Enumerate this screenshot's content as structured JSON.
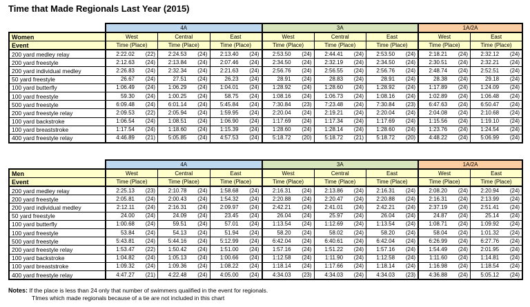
{
  "title": "Time that Made Regionals Last Year (2015)",
  "notes": {
    "label": "Notes:",
    "line1": "If the place is less than 24 only that number of swimmers qualified in the event for regionals.",
    "line2": "TImes which made regionals because of a tie are not included in this chart"
  },
  "colors": {
    "band_4a": "#BDD7EE",
    "band_3a": "#D8E4BC",
    "band_1a2a": "#FBCDA2",
    "header_yellow": "#FFFFCC",
    "border": "#000000"
  },
  "chart_data": [
    {
      "type": "table",
      "group_label": "Women",
      "event_header": "Event",
      "time_place_header": "Time (Place)",
      "sections": [
        {
          "label": "4A",
          "cols": 3,
          "color_key": "band_4a"
        },
        {
          "label": "3A",
          "cols": 3,
          "color_key": "band_3a"
        },
        {
          "label": "1A/2A",
          "cols": 2,
          "color_key": "band_1a2a"
        }
      ],
      "region_headers": [
        "West",
        "Central",
        "East",
        "West",
        "Central",
        "East",
        "West",
        "East"
      ],
      "rows": [
        {
          "event": "200 yard medley relay",
          "cells": [
            [
              "2:22.02",
              "(22)"
            ],
            [
              "2:24.53",
              "(24)"
            ],
            [
              "2:13.40",
              "(24)"
            ],
            [
              "2:53.50",
              "(24)"
            ],
            [
              "2:44.41",
              "(24)"
            ],
            [
              "2:53.50",
              "(24)"
            ],
            [
              "2:18.21",
              "(24)"
            ],
            [
              "2:32.12",
              "(24)"
            ]
          ]
        },
        {
          "event": "200 yard freestyle",
          "cells": [
            [
              "2:12.63",
              "(24)"
            ],
            [
              "2:13.84",
              "(24)"
            ],
            [
              "2:07.46",
              "(24)"
            ],
            [
              "2:34.50",
              "(24)"
            ],
            [
              "2:32.19",
              "(24)"
            ],
            [
              "2:34.50",
              "(24)"
            ],
            [
              "2:30.51",
              "(24)"
            ],
            [
              "2:32.21",
              "(24)"
            ]
          ]
        },
        {
          "event": "200 yard individual medley",
          "cells": [
            [
              "2:26.83",
              "(24)"
            ],
            [
              "2:32.34",
              "(24)"
            ],
            [
              "2:21.63",
              "(24)"
            ],
            [
              "2:56.76",
              "(24)"
            ],
            [
              "2:56.55",
              "(24)"
            ],
            [
              "2:56.76",
              "(24)"
            ],
            [
              "2:48.74",
              "(24)"
            ],
            [
              "2:52.51",
              "(24)"
            ]
          ]
        },
        {
          "event": "50 yard freestyle",
          "cells": [
            [
              "26.67",
              "(24)"
            ],
            [
              "27.51",
              "(24)"
            ],
            [
              "26.23",
              "(24)"
            ],
            [
              "28.91",
              "(24)"
            ],
            [
              "28.83",
              "(24)"
            ],
            [
              "28.91",
              "(24)"
            ],
            [
              "28.38",
              "(24)"
            ],
            [
              "29.18",
              "(24)"
            ]
          ]
        },
        {
          "event": "100 yard butterfly",
          "cells": [
            [
              "1:06.49",
              "(24)"
            ],
            [
              "1:06.29",
              "(24)"
            ],
            [
              "1:04.01",
              "(24)"
            ],
            [
              "1:28.92",
              "(24)"
            ],
            [
              "1:28.60",
              "(24)"
            ],
            [
              "1:28.92",
              "(24)"
            ],
            [
              "1:17.89",
              "(24)"
            ],
            [
              "1:24.09",
              "(24)"
            ]
          ]
        },
        {
          "event": "100 yard freestyle",
          "cells": [
            [
              "59.30",
              "(24)"
            ],
            [
              "1:00.25",
              "(24)"
            ],
            [
              "58.75",
              "(24)"
            ],
            [
              "1:08.16",
              "(24)"
            ],
            [
              "1:06.73",
              "(24)"
            ],
            [
              "1:08.16",
              "(24)"
            ],
            [
              "1:02.89",
              "(24)"
            ],
            [
              "1:06.48",
              "(24)"
            ]
          ]
        },
        {
          "event": "500 yard freestyle",
          "cells": [
            [
              "6:09.48",
              "(24)"
            ],
            [
              "6:01.14",
              "(24)"
            ],
            [
              "5:45.84",
              "(24)"
            ],
            [
              "7:30.84",
              "(23)"
            ],
            [
              "7:23.48",
              "(24)"
            ],
            [
              "7:30.84",
              "(23)"
            ],
            [
              "6:47.63",
              "(24)"
            ],
            [
              "6:50.47",
              "(24)"
            ]
          ]
        },
        {
          "event": "200 yard freestyle relay",
          "cells": [
            [
              "2:09.53",
              "(22)"
            ],
            [
              "2:05.94",
              "(24)"
            ],
            [
              "1:59.95",
              "(24)"
            ],
            [
              "2:20.04",
              "(24)"
            ],
            [
              "2:19.21",
              "(24)"
            ],
            [
              "2:20.04",
              "(24)"
            ],
            [
              "2:04.08",
              "(24)"
            ],
            [
              "2:10.68",
              "(24)"
            ]
          ]
        },
        {
          "event": "100 yard backstroke",
          "cells": [
            [
              "1:06.54",
              "(24)"
            ],
            [
              "1:08.51",
              "(24)"
            ],
            [
              "1:06.90",
              "(24)"
            ],
            [
              "1:17.69",
              "(24)"
            ],
            [
              "1:17.34",
              "(24)"
            ],
            [
              "1:17.69",
              "(24)"
            ],
            [
              "1:15.56",
              "(24)"
            ],
            [
              "1:19.10",
              "(24)"
            ]
          ]
        },
        {
          "event": "100 yard breaststroke",
          "cells": [
            [
              "1:17.54",
              "(24)"
            ],
            [
              "1:18.60",
              "(24)"
            ],
            [
              "1:15.39",
              "(24)"
            ],
            [
              "1:28.60",
              "(24)"
            ],
            [
              "1:28.14",
              "(24)"
            ],
            [
              "1:28.60",
              "(24)"
            ],
            [
              "1:23.76",
              "(24)"
            ],
            [
              "1:24.54",
              "(24)"
            ]
          ]
        },
        {
          "event": "400 yard freestyle relay",
          "cells": [
            [
              "4:46.89",
              "(21)"
            ],
            [
              "5:05.85",
              "(24)"
            ],
            [
              "4:57.53",
              "(24)"
            ],
            [
              "5:18.72",
              "(20)"
            ],
            [
              "5:18.72",
              "(21)"
            ],
            [
              "5:18.72",
              "(20)"
            ],
            [
              "4:48.22",
              "(24)"
            ],
            [
              "5:06.99",
              "(24)"
            ]
          ]
        }
      ]
    },
    {
      "type": "table",
      "group_label": "Men",
      "event_header": "Event",
      "time_place_header": "Time (Place)",
      "sections": [
        {
          "label": "4A",
          "cols": 3,
          "color_key": "band_4a"
        },
        {
          "label": "3A",
          "cols": 3,
          "color_key": "band_3a"
        },
        {
          "label": "1A/2A",
          "cols": 2,
          "color_key": "band_1a2a"
        }
      ],
      "region_headers": [
        "West",
        "Central",
        "East",
        "West",
        "Central",
        "East",
        "West",
        "East"
      ],
      "rows": [
        {
          "event": "200 yard medley relay",
          "cells": [
            [
              "2:25.13",
              "(23)"
            ],
            [
              "2:10.78",
              "(24)"
            ],
            [
              "1:58.68",
              "(24)"
            ],
            [
              "2:16.31",
              "(24)"
            ],
            [
              "2:13.86",
              "(24)"
            ],
            [
              "2:16.31",
              "(24)"
            ],
            [
              "2:08.20",
              "(24)"
            ],
            [
              "2:20.94",
              "(24)"
            ]
          ]
        },
        {
          "event": "200 yard freestyle",
          "cells": [
            [
              "2:05.81",
              "(24)"
            ],
            [
              "2:00.43",
              "(24)"
            ],
            [
              "1:54.32",
              "(24)"
            ],
            [
              "2:20.88",
              "(24)"
            ],
            [
              "2:20.47",
              "(24)"
            ],
            [
              "2:20.88",
              "(24)"
            ],
            [
              "2:16.31",
              "(24)"
            ],
            [
              "2:13.99",
              "(24)"
            ]
          ]
        },
        {
          "event": "200 yard individual medley",
          "cells": [
            [
              "2:12.11",
              "(24)"
            ],
            [
              "2:16.31",
              "(24)"
            ],
            [
              "2:09.97",
              "(24)"
            ],
            [
              "2:42.21",
              "(24)"
            ],
            [
              "2:41.01",
              "(24)"
            ],
            [
              "2:42.21",
              "(24)"
            ],
            [
              "2:37.19",
              "(24)"
            ],
            [
              "2:51.41",
              "(24)"
            ]
          ]
        },
        {
          "event": "50 yard freestyle",
          "cells": [
            [
              "24.00",
              "(24)"
            ],
            [
              "24.09",
              "(24)"
            ],
            [
              "23.45",
              "(24)"
            ],
            [
              "26.04",
              "(24)"
            ],
            [
              "25.97",
              "(24)"
            ],
            [
              "26.04",
              "(24)"
            ],
            [
              "24.87",
              "(24)"
            ],
            [
              "25.14",
              "(24)"
            ]
          ]
        },
        {
          "event": "100 yard butterfly",
          "cells": [
            [
              "1:00.68",
              "(24)"
            ],
            [
              "59.51",
              "(24)"
            ],
            [
              "57.01",
              "(24)"
            ],
            [
              "1:13.54",
              "(24)"
            ],
            [
              "1:12.69",
              "(24)"
            ],
            [
              "1:13.54",
              "(24)"
            ],
            [
              "1:08.71",
              "(24)"
            ],
            [
              "1:09.92",
              "(24)"
            ]
          ]
        },
        {
          "event": "100 yard freestyle",
          "cells": [
            [
              "53.84",
              "(24)"
            ],
            [
              "54.13",
              "(24)"
            ],
            [
              "51.94",
              "(24)"
            ],
            [
              "58.20",
              "(24)"
            ],
            [
              "58.02",
              "(24)"
            ],
            [
              "58.20",
              "(24)"
            ],
            [
              "58.04",
              "(24)"
            ],
            [
              "1:01.32",
              "(24)"
            ]
          ]
        },
        {
          "event": "500 yard freestyle",
          "cells": [
            [
              "5:43.81",
              "(24)"
            ],
            [
              "5:44.16",
              "(24)"
            ],
            [
              "5:12.99",
              "(24)"
            ],
            [
              "6:42.04",
              "(24)"
            ],
            [
              "6:40.61",
              "(24)"
            ],
            [
              "6:42.04",
              "(24)"
            ],
            [
              "6:26.99",
              "(24)"
            ],
            [
              "6:27.76",
              "(24)"
            ]
          ]
        },
        {
          "event": "200 yard freestyle relay",
          "cells": [
            [
              "1:53.47",
              "(22)"
            ],
            [
              "1:50.42",
              "(24)"
            ],
            [
              "1:51.00",
              "(24)"
            ],
            [
              "1:57.16",
              "(24)"
            ],
            [
              "1:51.22",
              "(24)"
            ],
            [
              "1:57.16",
              "(24)"
            ],
            [
              "1:54.49",
              "(24)"
            ],
            [
              "2:01.95",
              "(24)"
            ]
          ]
        },
        {
          "event": "100 yard backstroke",
          "cells": [
            [
              "1:04.82",
              "(24)"
            ],
            [
              "1:05.13",
              "(24)"
            ],
            [
              "1:00.66",
              "(24)"
            ],
            [
              "1:12.58",
              "(24)"
            ],
            [
              "1:11.90",
              "(24)"
            ],
            [
              "1:12.58",
              "(24)"
            ],
            [
              "1:11.60",
              "(24)"
            ],
            [
              "1:14.81",
              "(24)"
            ]
          ]
        },
        {
          "event": "100 yard breaststroke",
          "cells": [
            [
              "1:09.32",
              "(24)"
            ],
            [
              "1:09.36",
              "(24)"
            ],
            [
              "1:08.22",
              "(24)"
            ],
            [
              "1:18.14",
              "(24)"
            ],
            [
              "1:17.66",
              "(24)"
            ],
            [
              "1:18.14",
              "(24)"
            ],
            [
              "1:16.98",
              "(24)"
            ],
            [
              "1:18.54",
              "(24)"
            ]
          ]
        },
        {
          "event": "400 yard freestyle relay",
          "cells": [
            [
              "4:47.27",
              "(21)"
            ],
            [
              "4:22.48",
              "(24)"
            ],
            [
              "4:05.00",
              "(24)"
            ],
            [
              "4:34.03",
              "(23)"
            ],
            [
              "4:34.03",
              "(24)"
            ],
            [
              "4:34.03",
              "(23)"
            ],
            [
              "4:36.88",
              "(24)"
            ],
            [
              "5:05.12",
              "(24)"
            ]
          ]
        }
      ]
    }
  ]
}
